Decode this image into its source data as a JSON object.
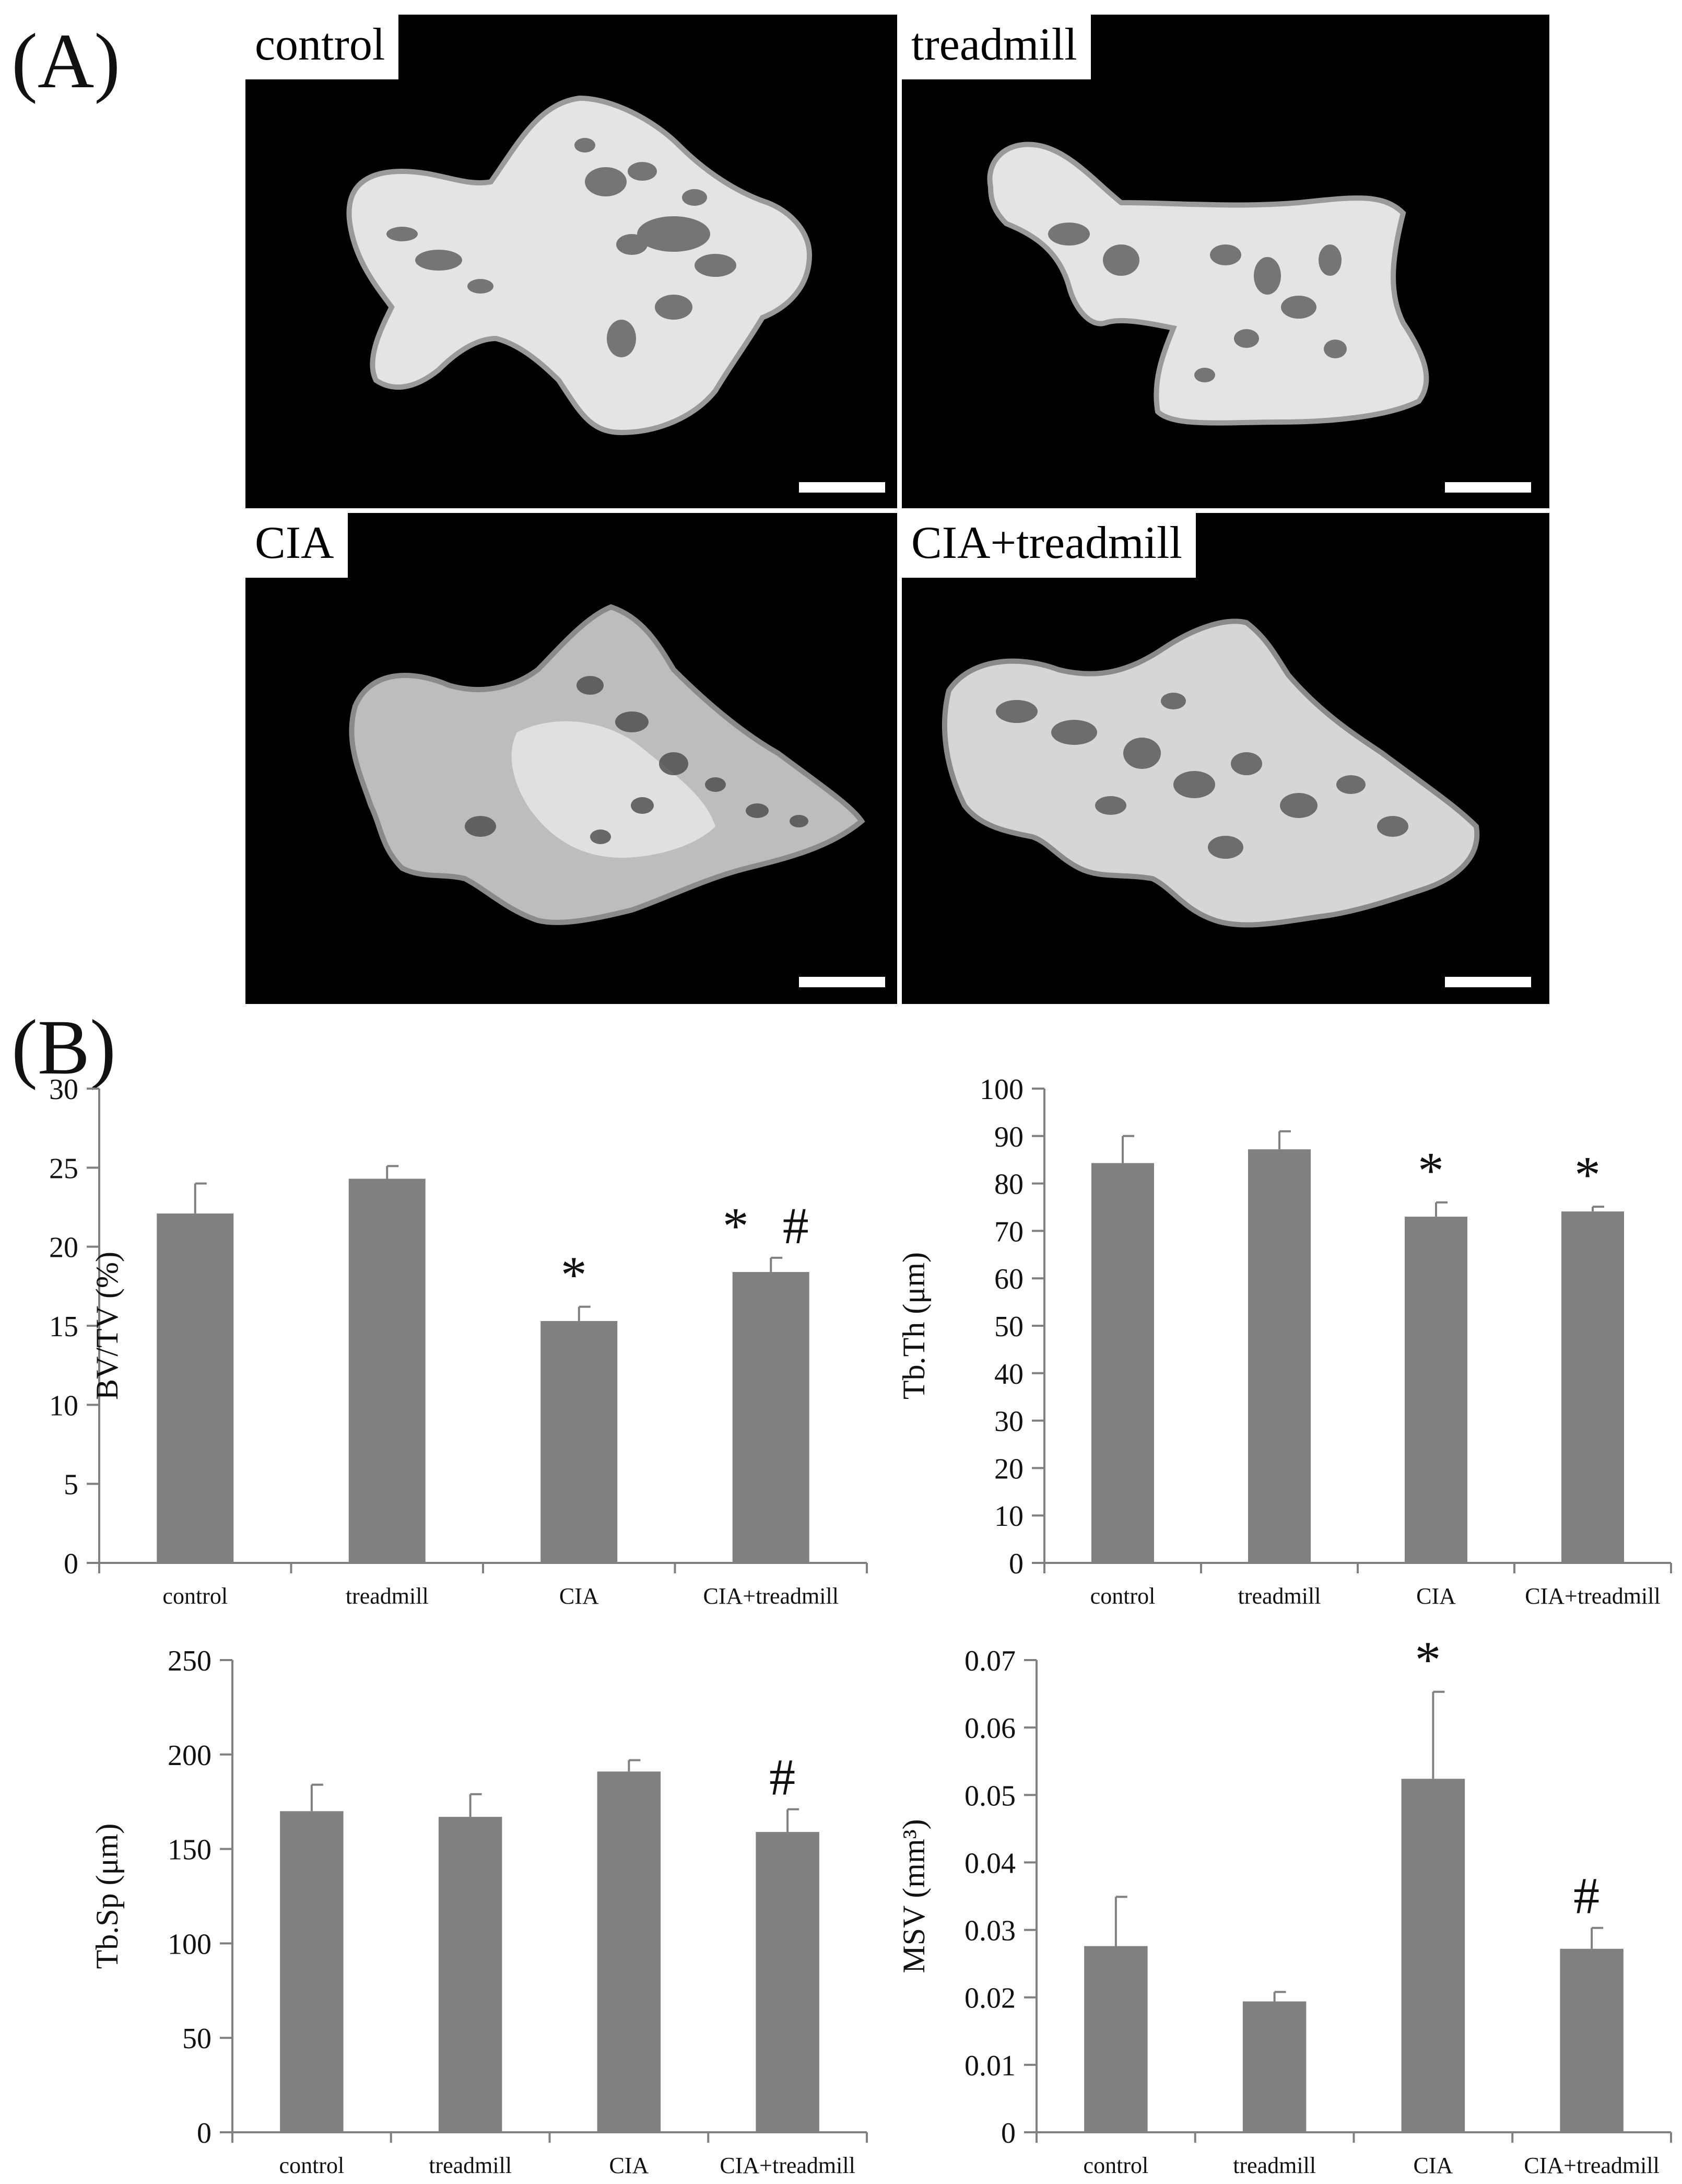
{
  "panels": {
    "a": "(A)",
    "b": "(B)"
  },
  "images": [
    {
      "label": "control",
      "sample": "control"
    },
    {
      "label": "treadmill",
      "sample": "treadmill"
    },
    {
      "label": "CIA",
      "sample": "cia"
    },
    {
      "label": "CIA+treadmill",
      "sample": "cia-treadmill"
    }
  ],
  "colors": {
    "bar": "#808080",
    "axis": "#808080",
    "text": "#111111",
    "bone": "#e6e6e6",
    "background": "#000000"
  },
  "chart_data": [
    {
      "type": "bar",
      "categories": [
        "control",
        "treadmill",
        "CIA",
        "CIA+treadmill"
      ],
      "values": [
        22.1,
        24.3,
        15.3,
        18.4
      ],
      "errors": [
        1.9,
        0.8,
        0.9,
        0.9
      ],
      "markers": [
        "",
        "",
        "*",
        "*#"
      ],
      "ylabel": "BV/TV (%)",
      "ylim": [
        0,
        30
      ],
      "yticks": [
        "0",
        "5",
        "10",
        "15",
        "20",
        "25",
        "30"
      ]
    },
    {
      "type": "bar",
      "categories": [
        "control",
        "treadmill",
        "CIA",
        "CIA+treadmill"
      ],
      "values": [
        84.3,
        87.2,
        73.0,
        74.1
      ],
      "errors": [
        5.7,
        3.8,
        3.0,
        1.0
      ],
      "markers": [
        "",
        "",
        "*",
        "*"
      ],
      "ylabel": "Tb.Th (μm)",
      "ylim": [
        0,
        100
      ],
      "yticks": [
        "0",
        "10",
        "20",
        "30",
        "40",
        "50",
        "60",
        "70",
        "80",
        "90",
        "100"
      ]
    },
    {
      "type": "bar",
      "categories": [
        "control",
        "treadmill",
        "CIA",
        "CIA+treadmill"
      ],
      "values": [
        170,
        167,
        191,
        159
      ],
      "errors": [
        14,
        12,
        6,
        12
      ],
      "markers": [
        "",
        "",
        "",
        "#"
      ],
      "ylabel": "Tb.Sp (μm)",
      "ylim": [
        0,
        250
      ],
      "yticks": [
        "0",
        "50",
        "100",
        "150",
        "200",
        "250"
      ]
    },
    {
      "type": "bar",
      "categories": [
        "control",
        "treadmill",
        "CIA",
        "CIA+treadmill"
      ],
      "values": [
        0.0276,
        0.0194,
        0.0524,
        0.0272
      ],
      "errors": [
        0.0073,
        0.0014,
        0.0129,
        0.0031
      ],
      "markers": [
        "",
        "",
        "*",
        "#"
      ],
      "ylabel": "MSV (mm³)",
      "ylim": [
        0,
        0.07
      ],
      "yticks": [
        "0",
        "0.01",
        "0.02",
        "0.03",
        "0.04",
        "0.05",
        "0.06",
        "0.07"
      ]
    }
  ]
}
